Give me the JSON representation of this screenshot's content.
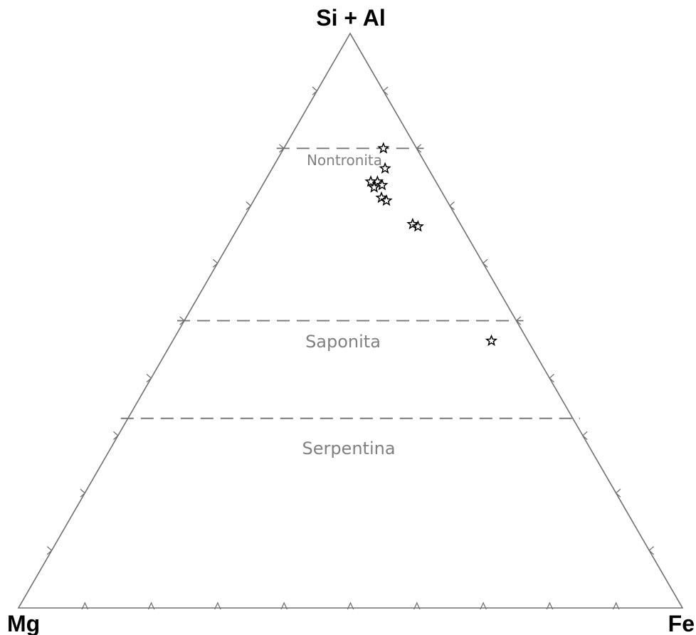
{
  "chart_data": {
    "type": "scatter",
    "subtype": "ternary",
    "vertices": {
      "top": "Si + Al",
      "left": "Mg",
      "right": "Fe"
    },
    "tick_step": 0.1,
    "ticks_per_side": 9,
    "fields": [
      {
        "name": "Nontronita",
        "top_fraction": 0.8
      },
      {
        "name": "Saponita",
        "top_fraction": 0.5
      },
      {
        "name": "Serpentina",
        "top_fraction": 0.33
      }
    ],
    "marker": "star",
    "points": [
      {
        "top": 0.8,
        "right": 0.15
      },
      {
        "top": 0.765,
        "right": 0.17
      },
      {
        "top": 0.742,
        "right": 0.17
      },
      {
        "top": 0.742,
        "right": 0.16
      },
      {
        "top": 0.736,
        "right": 0.18
      },
      {
        "top": 0.732,
        "right": 0.17
      },
      {
        "top": 0.714,
        "right": 0.19
      },
      {
        "top": 0.709,
        "right": 0.2
      },
      {
        "top": 0.668,
        "right": 0.26
      },
      {
        "top": 0.664,
        "right": 0.27
      },
      {
        "top": 0.465,
        "right": 0.48
      }
    ],
    "colors": {
      "frame": "#707070",
      "divider": "#707070",
      "field_label": "#808080",
      "marker_stroke": "#000000",
      "marker_fill": "#ffffff"
    }
  }
}
